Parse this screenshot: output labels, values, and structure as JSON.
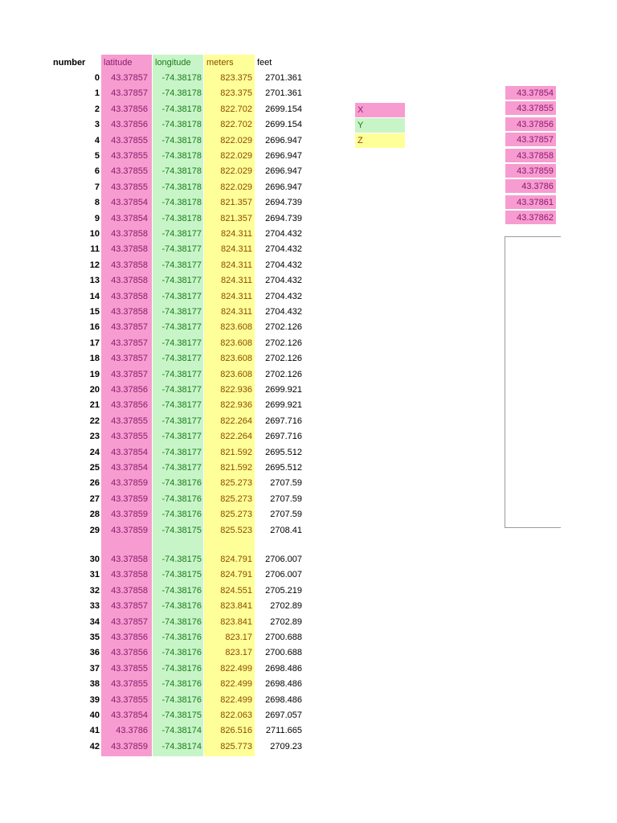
{
  "headers": {
    "number": "number",
    "latitude": "latitude",
    "longitude": "longitude",
    "meters": "meters",
    "feet": "feet"
  },
  "rows": [
    {
      "n": "0",
      "lat": "43.37857",
      "lon": "-74.38178",
      "m": "823.375",
      "ft": "2701.361"
    },
    {
      "n": "1",
      "lat": "43.37857",
      "lon": "-74.38178",
      "m": "823.375",
      "ft": "2701.361"
    },
    {
      "n": "2",
      "lat": "43.37856",
      "lon": "-74.38178",
      "m": "822.702",
      "ft": "2699.154"
    },
    {
      "n": "3",
      "lat": "43.37856",
      "lon": "-74.38178",
      "m": "822.702",
      "ft": "2699.154"
    },
    {
      "n": "4",
      "lat": "43.37855",
      "lon": "-74.38178",
      "m": "822.029",
      "ft": "2696.947"
    },
    {
      "n": "5",
      "lat": "43.37855",
      "lon": "-74.38178",
      "m": "822.029",
      "ft": "2696.947"
    },
    {
      "n": "6",
      "lat": "43.37855",
      "lon": "-74.38178",
      "m": "822.029",
      "ft": "2696.947"
    },
    {
      "n": "7",
      "lat": "43.37855",
      "lon": "-74.38178",
      "m": "822.029",
      "ft": "2696.947"
    },
    {
      "n": "8",
      "lat": "43.37854",
      "lon": "-74.38178",
      "m": "821.357",
      "ft": "2694.739"
    },
    {
      "n": "9",
      "lat": "43.37854",
      "lon": "-74.38178",
      "m": "821.357",
      "ft": "2694.739"
    },
    {
      "n": "10",
      "lat": "43.37858",
      "lon": "-74.38177",
      "m": "824.311",
      "ft": "2704.432"
    },
    {
      "n": "11",
      "lat": "43.37858",
      "lon": "-74.38177",
      "m": "824.311",
      "ft": "2704.432"
    },
    {
      "n": "12",
      "lat": "43.37858",
      "lon": "-74.38177",
      "m": "824.311",
      "ft": "2704.432"
    },
    {
      "n": "13",
      "lat": "43.37858",
      "lon": "-74.38177",
      "m": "824.311",
      "ft": "2704.432"
    },
    {
      "n": "14",
      "lat": "43.37858",
      "lon": "-74.38177",
      "m": "824.311",
      "ft": "2704.432"
    },
    {
      "n": "15",
      "lat": "43.37858",
      "lon": "-74.38177",
      "m": "824.311",
      "ft": "2704.432"
    },
    {
      "n": "16",
      "lat": "43.37857",
      "lon": "-74.38177",
      "m": "823.608",
      "ft": "2702.126"
    },
    {
      "n": "17",
      "lat": "43.37857",
      "lon": "-74.38177",
      "m": "823.608",
      "ft": "2702.126"
    },
    {
      "n": "18",
      "lat": "43.37857",
      "lon": "-74.38177",
      "m": "823.608",
      "ft": "2702.126"
    },
    {
      "n": "19",
      "lat": "43.37857",
      "lon": "-74.38177",
      "m": "823.608",
      "ft": "2702.126"
    },
    {
      "n": "20",
      "lat": "43.37856",
      "lon": "-74.38177",
      "m": "822.936",
      "ft": "2699.921"
    },
    {
      "n": "21",
      "lat": "43.37856",
      "lon": "-74.38177",
      "m": "822.936",
      "ft": "2699.921"
    },
    {
      "n": "22",
      "lat": "43.37855",
      "lon": "-74.38177",
      "m": "822.264",
      "ft": "2697.716"
    },
    {
      "n": "23",
      "lat": "43.37855",
      "lon": "-74.38177",
      "m": "822.264",
      "ft": "2697.716"
    },
    {
      "n": "24",
      "lat": "43.37854",
      "lon": "-74.38177",
      "m": "821.592",
      "ft": "2695.512"
    },
    {
      "n": "25",
      "lat": "43.37854",
      "lon": "-74.38177",
      "m": "821.592",
      "ft": "2695.512"
    },
    {
      "n": "26",
      "lat": "43.37859",
      "lon": "-74.38176",
      "m": "825.273",
      "ft": "2707.59"
    },
    {
      "n": "27",
      "lat": "43.37859",
      "lon": "-74.38176",
      "m": "825.273",
      "ft": "2707.59"
    },
    {
      "n": "28",
      "lat": "43.37859",
      "lon": "-74.38176",
      "m": "825.273",
      "ft": "2707.59"
    },
    {
      "n": "29",
      "lat": "43.37859",
      "lon": "-74.38175",
      "m": "825.523",
      "ft": "2708.41"
    },
    {
      "n": "30",
      "lat": "43.37858",
      "lon": "-74.38175",
      "m": "824.791",
      "ft": "2706.007"
    },
    {
      "n": "31",
      "lat": "43.37858",
      "lon": "-74.38175",
      "m": "824.791",
      "ft": "2706.007"
    },
    {
      "n": "32",
      "lat": "43.37858",
      "lon": "-74.38176",
      "m": "824.551",
      "ft": "2705.219"
    },
    {
      "n": "33",
      "lat": "43.37857",
      "lon": "-74.38176",
      "m": "823.841",
      "ft": "2702.89"
    },
    {
      "n": "34",
      "lat": "43.37857",
      "lon": "-74.38176",
      "m": "823.841",
      "ft": "2702.89"
    },
    {
      "n": "35",
      "lat": "43.37856",
      "lon": "-74.38176",
      "m": "823.17",
      "ft": "2700.688"
    },
    {
      "n": "36",
      "lat": "43.37856",
      "lon": "-74.38176",
      "m": "823.17",
      "ft": "2700.688"
    },
    {
      "n": "37",
      "lat": "43.37855",
      "lon": "-74.38176",
      "m": "822.499",
      "ft": "2698.486"
    },
    {
      "n": "38",
      "lat": "43.37855",
      "lon": "-74.38176",
      "m": "822.499",
      "ft": "2698.486"
    },
    {
      "n": "39",
      "lat": "43.37855",
      "lon": "-74.38176",
      "m": "822.499",
      "ft": "2698.486"
    },
    {
      "n": "40",
      "lat": "43.37854",
      "lon": "-74.38175",
      "m": "822.063",
      "ft": "2697.057"
    },
    {
      "n": "41",
      "lat": "43.3786",
      "lon": "-74.38174",
      "m": "826.516",
      "ft": "2711.665"
    },
    {
      "n": "42",
      "lat": "43.37859",
      "lon": "-74.38174",
      "m": "825.773",
      "ft": "2709.23"
    }
  ],
  "legend": [
    {
      "label": "X",
      "color": "#f79cd0",
      "text_color": "#8b1a6e"
    },
    {
      "label": "Y",
      "color": "#c8f5c8",
      "text_color": "#1a7a1a"
    },
    {
      "label": "Z",
      "color": "#ffff99",
      "text_color": "#8a4a00"
    }
  ],
  "right_values": [
    "43.37854",
    "43.37855",
    "43.37856",
    "43.37857",
    "43.37858",
    "43.37859",
    "43.3786",
    "43.37861",
    "43.37862"
  ],
  "colors": {
    "latitude_fill": "#f79cd0",
    "longitude_fill": "#c8f5c8",
    "meters_fill": "#ffff99"
  }
}
